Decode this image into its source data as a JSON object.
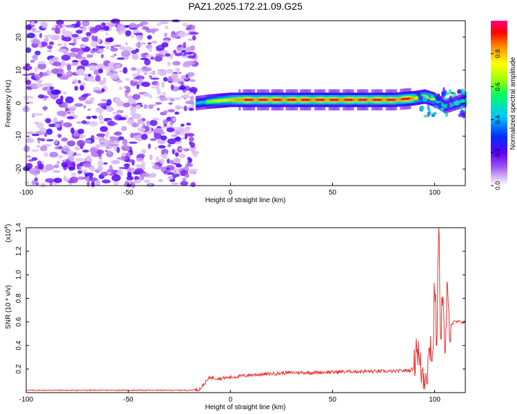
{
  "title": "PAZ1.2025.172.21.09.G25",
  "top_chart": {
    "xlabel": "Height of straight line (km)",
    "ylabel": "Frequency (Hz)",
    "xticks": [
      "-100",
      "-50",
      "0",
      "50",
      "100"
    ],
    "yticks": [
      "20",
      "10",
      "0",
      "-10",
      "-20"
    ],
    "colorbar_label": "Normalized spectral amplitude",
    "colorbar_ticks": [
      "0.0",
      "0.2",
      "0.4",
      "0.6",
      "0.8"
    ]
  },
  "bottom_chart": {
    "xlabel": "Height of straight line (km)",
    "ylabel": "SNR (10 * v/v)",
    "scale_prefix": "(x10",
    "scale_exp": "4",
    "scale_suffix": ")",
    "xticks": [
      "-100",
      "-50",
      "0",
      "50",
      "100"
    ],
    "yticks": [
      "1.4",
      "1.2",
      "1.0",
      "0.8",
      "0.6",
      "0.4",
      "0.2"
    ]
  },
  "colors": {
    "snr_line": "#e8312f",
    "frame": "#000000"
  },
  "chart_data": [
    {
      "type": "heatmap",
      "title": "PAZ1.2025.172.21.09.G25",
      "xlabel": "Height of straight line (km)",
      "ylabel": "Frequency (Hz)",
      "xlim": [
        -100,
        115
      ],
      "ylim": [
        -25,
        25
      ],
      "colorbar": {
        "label": "Normalized spectral amplitude",
        "range": [
          0,
          1
        ],
        "colormap": "rainbow"
      },
      "features": [
        {
          "region": "x < -17 km",
          "description": "scattered low-amplitude noise (0.0-0.25) across all frequencies"
        },
        {
          "region": "-17 to 115 km",
          "description": "narrow band near 1 Hz, peak amplitude ~0.9-1.0 between 10 and 90 km"
        }
      ],
      "ridge": {
        "x": [
          -17,
          -10,
          0,
          10,
          20,
          30,
          40,
          50,
          60,
          70,
          80,
          90,
          95,
          100,
          105,
          110,
          115
        ],
        "freq_hz": [
          0,
          0.5,
          1,
          1,
          1,
          1,
          1,
          1,
          1,
          1,
          1,
          1.5,
          2,
          1,
          -1,
          0,
          1
        ]
      }
    },
    {
      "type": "line",
      "xlabel": "Height of straight line (km)",
      "ylabel": "SNR (10 * v/v)",
      "y_scale": 10000,
      "xlim": [
        -100,
        115
      ],
      "ylim": [
        0,
        1.4
      ],
      "x": [
        -100,
        -80,
        -60,
        -40,
        -20,
        -15,
        -10,
        -5,
        0,
        10,
        20,
        30,
        40,
        50,
        60,
        70,
        80,
        88,
        90,
        91,
        93,
        95,
        97,
        98,
        99,
        100,
        101,
        102,
        103,
        104,
        105,
        106,
        107,
        108,
        110,
        115
      ],
      "y": [
        0.02,
        0.02,
        0.02,
        0.02,
        0.02,
        0.03,
        0.13,
        0.12,
        0.13,
        0.15,
        0.16,
        0.17,
        0.17,
        0.175,
        0.18,
        0.18,
        0.18,
        0.19,
        0.21,
        0.46,
        0.2,
        0.15,
        0.25,
        0.45,
        0.25,
        0.95,
        0.4,
        1.4,
        0.5,
        0.9,
        0.2,
        0.82,
        0.6,
        0.58,
        0.6,
        0.6
      ]
    }
  ]
}
